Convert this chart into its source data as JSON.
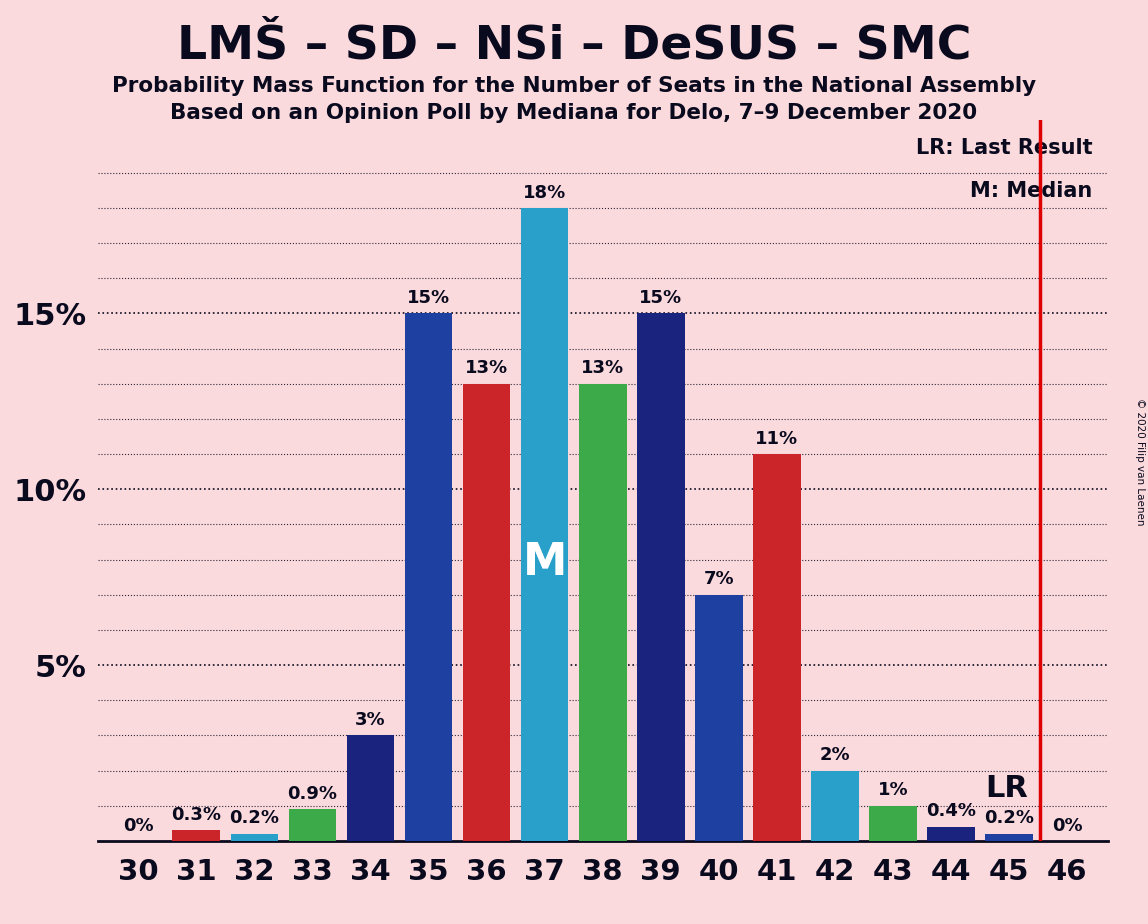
{
  "title": "LMŠ – SD – NSi – DeSUS – SMC",
  "subtitle1": "Probability Mass Function for the Number of Seats in the National Assembly",
  "subtitle2": "Based on an Opinion Poll by Mediana for Delo, 7–9 December 2020",
  "copyright": "© 2020 Filip van Laenen",
  "background_color": "#fadadd",
  "seats": [
    30,
    31,
    32,
    33,
    34,
    35,
    36,
    37,
    38,
    39,
    40,
    41,
    42,
    43,
    44,
    45,
    46
  ],
  "values": [
    0.0,
    0.3,
    0.2,
    0.9,
    3.0,
    15.0,
    13.0,
    18.0,
    13.0,
    15.0,
    7.0,
    11.0,
    2.0,
    1.0,
    0.4,
    0.2,
    0.0
  ],
  "colors": [
    "#1E40A0",
    "#CC2529",
    "#29A0C9",
    "#3DAA4A",
    "#1A237E",
    "#1E40A0",
    "#CC2529",
    "#29A0C9",
    "#3DAA4A",
    "#1A237E",
    "#1E40A0",
    "#CC2529",
    "#29A0C9",
    "#3DAA4A",
    "#1A237E",
    "#1E40A0",
    "#CC2529"
  ],
  "median_seat": 37,
  "lr_seat": 46,
  "ylim_max": 20.5,
  "axis_color": "#0a0a1e",
  "grid_color": "#0a0a1e",
  "title_color": "#0a0a1e",
  "lr_line_color": "#dd0000",
  "median_text_color": "#ffffff",
  "lr_text_color": "#0a0a1e",
  "bar_label_color": "#0a0a1e",
  "bar_label_fontsize": 13,
  "bar_width": 0.82
}
